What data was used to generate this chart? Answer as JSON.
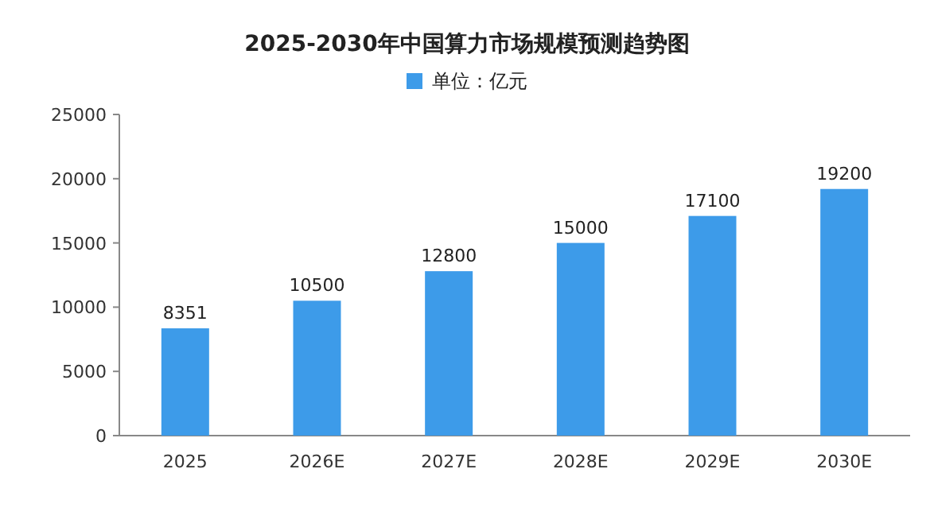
{
  "chart_data": {
    "type": "bar",
    "title": "2025-2030年中国算力市场规模预测趋势图",
    "categories": [
      "2025",
      "2026E",
      "2027E",
      "2028E",
      "2029E",
      "2030E"
    ],
    "series": [
      {
        "name": "单位：亿元",
        "color": "#3d9be9",
        "values": [
          8351,
          10500,
          12800,
          15000,
          17100,
          19200
        ]
      }
    ],
    "ylim": [
      0,
      25000
    ],
    "yticks": [
      0,
      5000,
      10000,
      15000,
      20000,
      25000
    ],
    "data_labels": true,
    "legend": "top",
    "grid": false
  }
}
